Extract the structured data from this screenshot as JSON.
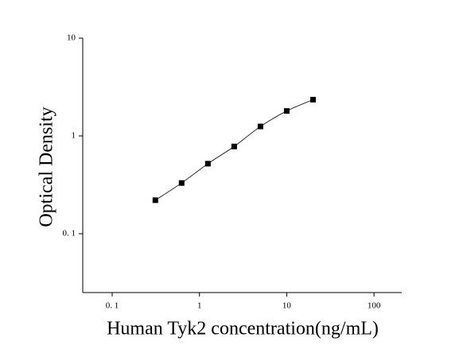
{
  "chart_data": {
    "type": "scatter",
    "x_label": "Human Tyk2 concentration(ng/mL)",
    "y_label": "Optical Density",
    "x_log": true,
    "y_log": true,
    "series": [
      {
        "color": "#000000",
        "line": true,
        "x": [
          0.3125,
          0.625,
          1.25,
          2.5,
          5,
          10,
          20
        ],
        "values": [
          0.22,
          0.33,
          0.52,
          0.78,
          1.25,
          1.8,
          2.35
        ]
      }
    ],
    "xlim": [
      0.046,
      208
    ],
    "ylim": [
      0.025,
      10
    ],
    "xticks": [
      {
        "value": 0.1,
        "label": "0. 1"
      },
      1,
      10,
      100
    ],
    "yticks": [
      {
        "value": 0.1,
        "label": "0. 1"
      },
      1,
      10
    ]
  }
}
